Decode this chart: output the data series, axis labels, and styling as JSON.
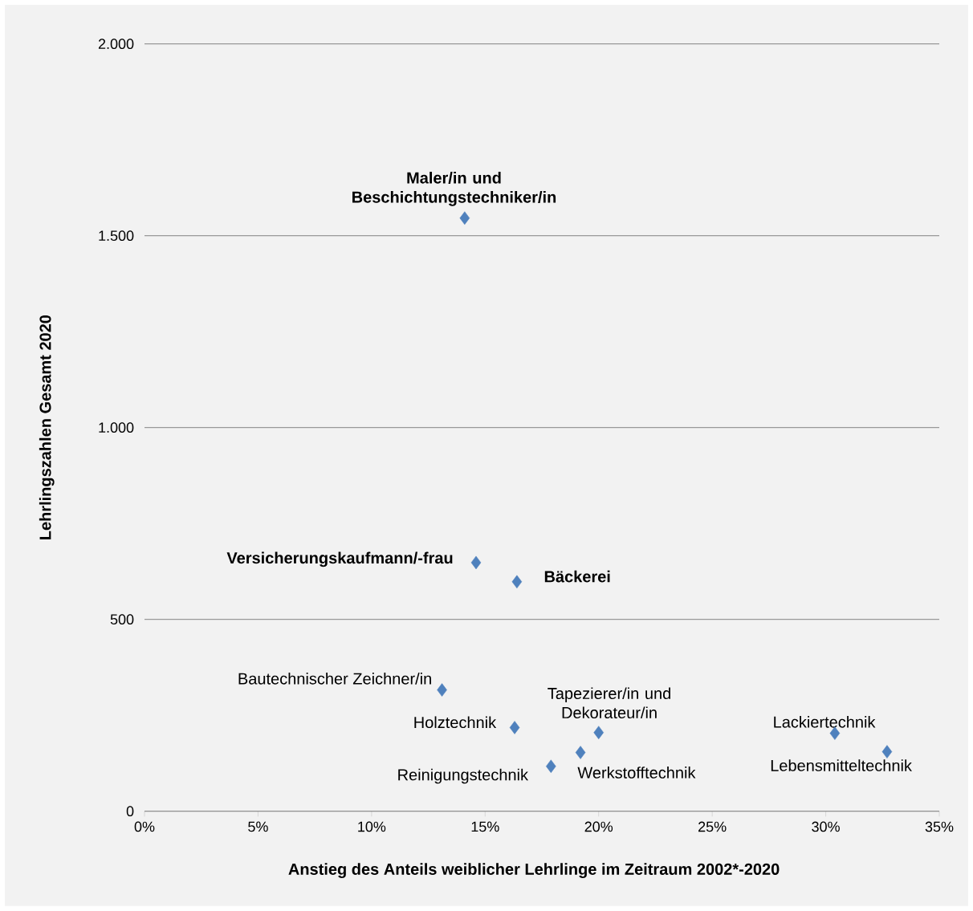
{
  "chart_data": {
    "type": "scatter",
    "xlabel": "Anstieg des Anteils weiblicher Lehrlinge im Zeitraum 2002*-2020",
    "ylabel": "Lehrlingszahlen Gesamt 2020",
    "x": [
      14.1,
      14.6,
      16.4,
      13.1,
      16.3,
      17.9,
      19.2,
      20.0,
      30.4,
      32.7
    ],
    "values": [
      1546,
      648,
      598,
      316,
      218,
      117,
      153,
      205,
      203,
      155
    ],
    "color": "#4f81bd",
    "marker": "diamond",
    "grid": "y",
    "xlim": [
      0,
      35
    ],
    "ylim": [
      0,
      2000
    ],
    "xticks": [
      {
        "value": 0,
        "label": "0%"
      },
      {
        "value": 5,
        "label": "5%"
      },
      {
        "value": 10,
        "label": "10%"
      },
      {
        "value": 15,
        "label": "15%"
      },
      {
        "value": 20,
        "label": "20%"
      },
      {
        "value": 25,
        "label": "25%"
      },
      {
        "value": 30,
        "label": "30%"
      },
      {
        "value": 35,
        "label": "35%"
      }
    ],
    "yticks": [
      0,
      500,
      {
        "value": 1000,
        "label": "1.000"
      },
      {
        "value": 1500,
        "label": "1.500"
      },
      {
        "value": 2000,
        "label": "2.000"
      }
    ],
    "annotations": [
      {
        "text": "**Maler/in und Beschichtungstechniker/in**",
        "x": 14.1,
        "y": 1546
      },
      {
        "text": "**Versicherungskaufmann/-frau**",
        "x": 14.6,
        "y": 648
      },
      {
        "text": "**Bäckerei**",
        "x": 16.4,
        "y": 598
      },
      {
        "text": "Bautechnischer Zeichner/in",
        "x": 13.1,
        "y": 316
      },
      {
        "text": "Holztechnik",
        "x": 16.3,
        "y": 218
      },
      {
        "text": "Reinigungstechnik",
        "x": 17.9,
        "y": 117
      },
      {
        "text": "Werkstofftechnik",
        "x": 19.2,
        "y": 153
      },
      {
        "text": "Tapezierer/in und Dekorateur/in",
        "x": 20.0,
        "y": 205
      },
      {
        "text": "Lackiertechnik",
        "x": 30.4,
        "y": 203
      },
      {
        "text": "Lebensmitteltechnik",
        "x": 32.7,
        "y": 155
      }
    ]
  }
}
